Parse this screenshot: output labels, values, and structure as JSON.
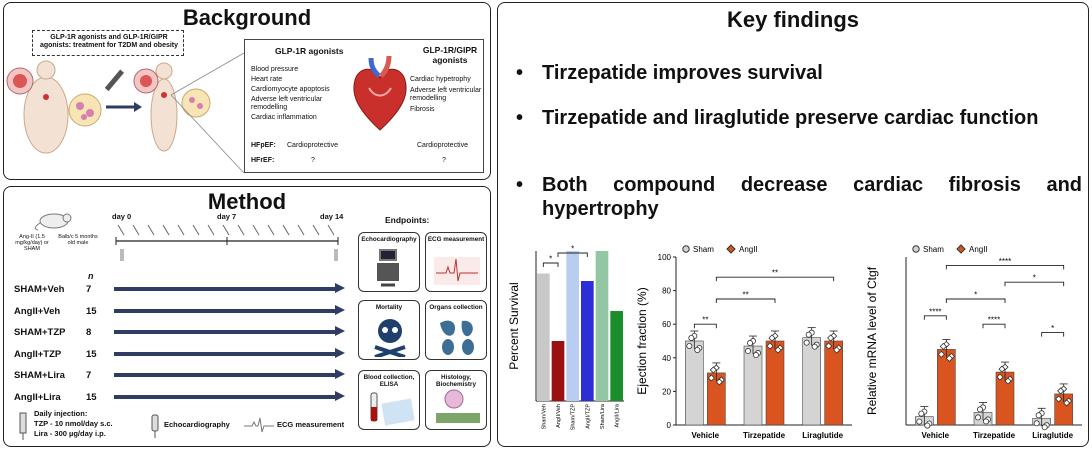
{
  "background": {
    "title": "Background",
    "banner": "GLP-1R agonists and GLP-1R/GIPR agonists: treatment for T2DM and obesity",
    "col_glp1": "GLP-1R agonists",
    "col_dual": "GLP-1R/GIPR agonists",
    "glp1_effects": [
      "Blood pressure",
      "Heart rate",
      "Cardiomyocyte apoptosis",
      "Adverse left ventricular remodelling",
      "Cardiac inflammation"
    ],
    "dual_effects": [
      "Cardiac hypetrophy",
      "Adverse left ventricular remodelling",
      "Fibrosis"
    ],
    "hfpef_label": "HFpEF:",
    "hfref_label": "HFrEF:",
    "hfpef_glp1": "Cardioprotective",
    "hfpef_dual": "Cardioprotective",
    "hfref_glp1": "?",
    "hfref_dual": "?"
  },
  "method": {
    "title": "Method",
    "mouse_note_a": "Ang-II (1.5 mg/kg/day) or SHAM",
    "mouse_note_b": "Balb/c 5 months old male",
    "day0": "day 0",
    "day7": "day 7",
    "day14": "day 14",
    "n_header": "n",
    "groups": [
      {
        "label": "SHAM+Veh",
        "n": "7"
      },
      {
        "label": "AngII+Veh",
        "n": "15"
      },
      {
        "label": "SHAM+TZP",
        "n": "8"
      },
      {
        "label": "AngII+TZP",
        "n": "15"
      },
      {
        "label": "SHAM+Lira",
        "n": "7"
      },
      {
        "label": "AngII+Lira",
        "n": "15"
      }
    ],
    "endpoints_title": "Endpoints:",
    "endpoints": [
      "Echocardiography",
      "ECG measurement",
      "Mortality",
      "Organs collection",
      "Blood collection, ELISA",
      "Histology, Biochemistry"
    ],
    "legend_injection_title": "Daily injection:",
    "legend_injection_tzp": "TZP - 10 nmol/day s.c.",
    "legend_injection_lira": "Lira - 300 µg/day i.p.",
    "legend_echo": "Echocardiography",
    "legend_ecg": "ECG measurement"
  },
  "findings": {
    "title": "Key findings",
    "items": [
      "Tirzepatide improves survival",
      "Tirzepatide and liraglutide preserve cardiac function",
      "Both compound decrease cardiac fibrosis and hypertrophy"
    ]
  },
  "colors": {
    "navy": "#2f3c63",
    "sham_gray": "#d4d4d4",
    "angii_orange": "#d9541e"
  },
  "chart_data": [
    {
      "type": "bar",
      "ylabel": "Percent Survival",
      "categories": [
        "Sham/Veh",
        "AngII/Veh",
        "Sham/TZP",
        "AngII/TZP",
        "Sham/Lira",
        "AngII/Lira"
      ],
      "values": [
        85,
        40,
        100,
        80,
        100,
        60
      ],
      "bar_colors": [
        "#c8c8c8",
        "#9b1010",
        "#b9cdf0",
        "#2d2ed8",
        "#93c7a3",
        "#1a8e2c"
      ],
      "ylim": [
        0,
        100
      ],
      "significance": [
        "*",
        "*"
      ]
    },
    {
      "type": "bar",
      "ylabel": "Ejection fraction (%)",
      "categories": [
        "Vehicle",
        "Tirzepatide",
        "Liraglutide"
      ],
      "series": [
        {
          "name": "Sham",
          "values": [
            50,
            47,
            52
          ]
        },
        {
          "name": "AngII",
          "values": [
            31,
            50,
            50
          ]
        }
      ],
      "yticks": [
        0,
        20,
        40,
        60,
        80,
        100
      ],
      "ylim": [
        0,
        100
      ],
      "significance": [
        "**",
        "**",
        "**"
      ]
    },
    {
      "type": "bar",
      "ylabel": "Relative mRNA level of Ctgf",
      "categories": [
        "Vehicle",
        "Tirzepatide",
        "Liraglutide"
      ],
      "series": [
        {
          "name": "Sham",
          "values": [
            1.0,
            1.5,
            0.8
          ]
        },
        {
          "name": "AngII",
          "values": [
            9.0,
            6.3,
            3.7
          ]
        }
      ],
      "ylim": [
        0,
        20
      ],
      "significance": [
        "****",
        "****",
        "*",
        "*",
        "*",
        "****"
      ]
    }
  ]
}
